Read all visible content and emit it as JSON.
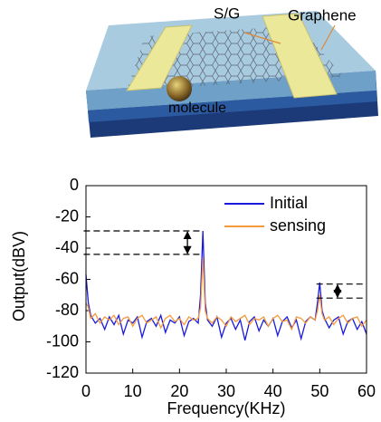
{
  "illustration": {
    "labels": [
      "S/G",
      "Graphene",
      "molecule"
    ]
  },
  "chart_data": {
    "type": "line",
    "xlabel": "Frequency(KHz)",
    "ylabel": "Output(dBV)",
    "x": [
      0,
      0.5,
      1,
      2,
      3,
      4,
      5,
      6,
      7,
      8,
      9,
      10,
      11,
      12,
      13,
      14,
      15,
      16,
      17,
      18,
      19,
      20,
      21,
      22,
      23,
      24,
      24.5,
      25,
      25.5,
      26,
      27,
      28,
      29,
      30,
      31,
      32,
      33,
      34,
      35,
      36,
      37,
      38,
      39,
      40,
      41,
      42,
      43,
      44,
      45,
      46,
      47,
      48,
      49,
      49.5,
      50,
      50.5,
      51,
      52,
      53,
      54,
      55,
      56,
      57,
      58,
      59,
      60
    ],
    "series": [
      {
        "name": "Initial",
        "color": "#1a1adc",
        "values": [
          -57,
          -75,
          -83,
          -88,
          -85,
          -92,
          -84,
          -89,
          -83,
          -95,
          -86,
          -88,
          -84,
          -97,
          -87,
          -85,
          -90,
          -83,
          -94,
          -86,
          -88,
          -84,
          -96,
          -87,
          -85,
          -88,
          -70,
          -29,
          -75,
          -86,
          -90,
          -84,
          -97,
          -88,
          -85,
          -92,
          -86,
          -99,
          -87,
          -84,
          -93,
          -86,
          -90,
          -85,
          -96,
          -87,
          -84,
          -91,
          -86,
          -98,
          -87,
          -84,
          -86,
          -75,
          -62,
          -80,
          -85,
          -91,
          -86,
          -84,
          -95,
          -87,
          -85,
          -92,
          -87,
          -95
        ]
      },
      {
        "name": "sensing",
        "color": "#f59a3c",
        "values": [
          -75,
          -78,
          -85,
          -82,
          -88,
          -84,
          -86,
          -83,
          -89,
          -85,
          -84,
          -90,
          -85,
          -83,
          -88,
          -86,
          -84,
          -91,
          -85,
          -83,
          -87,
          -85,
          -89,
          -84,
          -86,
          -85,
          -78,
          -46,
          -80,
          -85,
          -88,
          -84,
          -86,
          -90,
          -84,
          -87,
          -85,
          -83,
          -89,
          -85,
          -86,
          -84,
          -90,
          -85,
          -83,
          -87,
          -86,
          -92,
          -84,
          -85,
          -88,
          -84,
          -86,
          -80,
          -70,
          -82,
          -86,
          -84,
          -89,
          -85,
          -83,
          -88,
          -85,
          -84,
          -90,
          -86
        ]
      }
    ],
    "xlim": [
      0,
      60
    ],
    "xticks": [
      0,
      10,
      20,
      30,
      40,
      50,
      60
    ],
    "ylim": [
      -120,
      0
    ],
    "yticks": [
      -120,
      -100,
      -80,
      -60,
      -40,
      -20,
      0
    ],
    "level_markers": [
      {
        "levels": [
          -29,
          -44
        ],
        "x_range": [
          -0.5,
          24.6
        ],
        "arrow_x": 21.7
      },
      {
        "levels": [
          -63,
          -72
        ],
        "x_range": [
          49.3,
          60
        ],
        "arrow_x": 53.8
      }
    ],
    "legend": "upper right"
  }
}
